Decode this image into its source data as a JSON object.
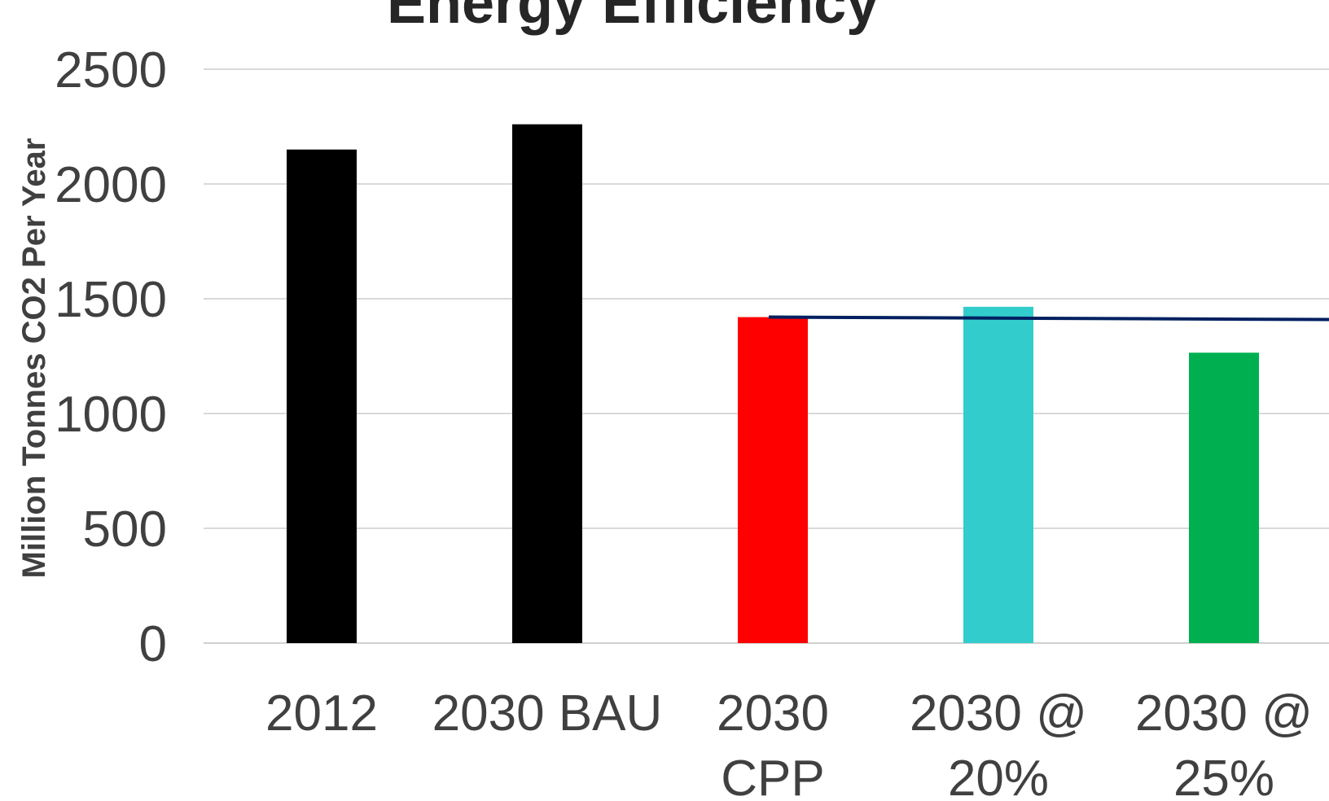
{
  "chart_data": {
    "type": "bar",
    "title": "Energy Efficiency",
    "ylabel": "Million Tonnes CO2 Per Year",
    "xlabel": "",
    "ylim": [
      0,
      2500
    ],
    "yticks": [
      0,
      500,
      1000,
      1500,
      2000,
      2500
    ],
    "grid": true,
    "categories": [
      [
        "2012"
      ],
      [
        "2030 BAU"
      ],
      [
        "2030",
        "CPP"
      ],
      [
        "2030 @",
        "20%"
      ],
      [
        "2030 @",
        "25%"
      ]
    ],
    "values": [
      2150,
      2260,
      1420,
      1465,
      1265
    ],
    "colors": [
      "#000000",
      "#000000",
      "#ff0000",
      "#33cccc",
      "#00b050"
    ],
    "reference_line": {
      "value": 1420,
      "color": "#002060"
    }
  }
}
